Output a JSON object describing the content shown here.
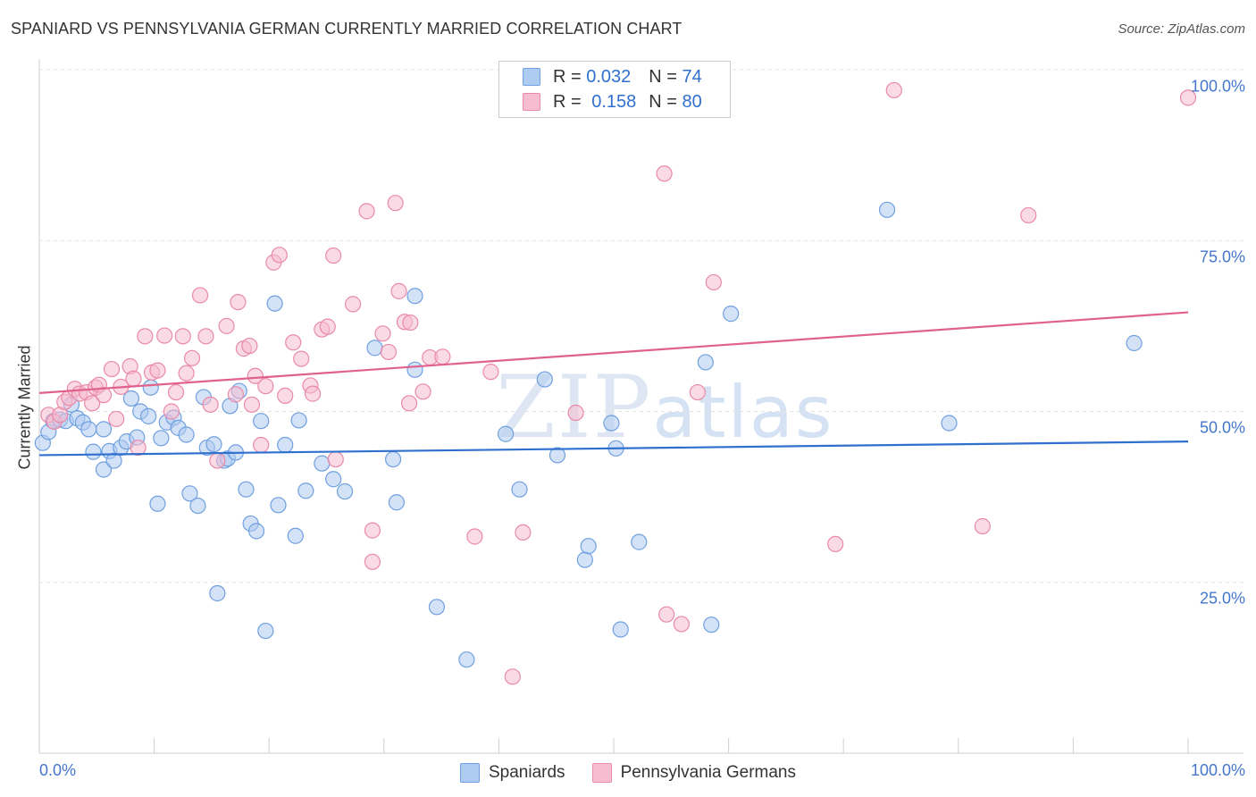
{
  "title": "SPANIARD VS PENNSYLVANIA GERMAN CURRENTLY MARRIED CORRELATION CHART",
  "source": "Source: ZipAtlas.com",
  "watermark": {
    "zip": "ZIP",
    "atlas": "atlas"
  },
  "legend": {
    "rows": [
      {
        "r_label": "R =",
        "r_value": "0.032",
        "n_label": "N =",
        "n_value": "74",
        "color": "#aecbf1"
      },
      {
        "r_label": "R =",
        "r_value": "0.158",
        "n_label": "N =",
        "n_value": "80",
        "color": "#f6bcd0"
      }
    ]
  },
  "bottom_legend": [
    {
      "label": "Spaniards",
      "color": "#aecbf1"
    },
    {
      "label": "Pennsylvania Germans",
      "color": "#f6bcd0"
    }
  ],
  "chart_data": {
    "type": "scatter",
    "title": "SPANIARD VS PENNSYLVANIA GERMAN CURRENTLY MARRIED CORRELATION CHART",
    "xlabel": "",
    "ylabel": "Currently Married",
    "xlim": [
      0,
      100
    ],
    "ylim": [
      0,
      100
    ],
    "x_tick_labels": [
      "0.0%",
      "100.0%"
    ],
    "y_ticks": [
      25,
      50,
      75,
      100
    ],
    "y_tick_labels": [
      "25.0%",
      "50.0%",
      "75.0%",
      "100.0%"
    ],
    "grid": true,
    "legend_position": "top-center",
    "series": [
      {
        "name": "Spaniards",
        "color": "#6fa0e0",
        "fill": "#aecbf1",
        "trend": {
          "x": [
            0,
            100
          ],
          "y": [
            43.6,
            45.6
          ],
          "color": "#2f6fce"
        },
        "points": [
          [
            0.3,
            45.4
          ],
          [
            0.8,
            47.0
          ],
          [
            1.2,
            48.6
          ],
          [
            1.8,
            48.8
          ],
          [
            2.3,
            48.6
          ],
          [
            2.8,
            51.0
          ],
          [
            3.3,
            49.0
          ],
          [
            3.8,
            48.4
          ],
          [
            4.3,
            47.4
          ],
          [
            4.7,
            44.1
          ],
          [
            5.6,
            47.4
          ],
          [
            5.6,
            41.5
          ],
          [
            6.1,
            44.2
          ],
          [
            6.5,
            42.8
          ],
          [
            7.1,
            44.7
          ],
          [
            7.6,
            45.6
          ],
          [
            8.0,
            51.9
          ],
          [
            8.5,
            46.2
          ],
          [
            8.8,
            50.0
          ],
          [
            9.5,
            49.3
          ],
          [
            9.7,
            53.5
          ],
          [
            10.3,
            36.5
          ],
          [
            10.6,
            46.1
          ],
          [
            11.1,
            48.4
          ],
          [
            11.7,
            49.1
          ],
          [
            12.1,
            47.6
          ],
          [
            12.8,
            46.6
          ],
          [
            13.1,
            38.0
          ],
          [
            13.8,
            36.2
          ],
          [
            14.3,
            52.1
          ],
          [
            14.6,
            44.7
          ],
          [
            15.2,
            45.2
          ],
          [
            15.5,
            23.4
          ],
          [
            16.1,
            42.8
          ],
          [
            16.4,
            43.1
          ],
          [
            16.6,
            50.8
          ],
          [
            17.1,
            44.0
          ],
          [
            17.4,
            53.0
          ],
          [
            18.0,
            38.6
          ],
          [
            18.4,
            33.6
          ],
          [
            18.9,
            32.5
          ],
          [
            19.3,
            48.6
          ],
          [
            19.7,
            17.9
          ],
          [
            20.5,
            65.8
          ],
          [
            20.8,
            36.3
          ],
          [
            21.4,
            45.1
          ],
          [
            22.3,
            31.8
          ],
          [
            22.6,
            48.7
          ],
          [
            23.2,
            38.4
          ],
          [
            24.6,
            42.4
          ],
          [
            25.6,
            40.1
          ],
          [
            26.6,
            38.3
          ],
          [
            29.2,
            59.3
          ],
          [
            30.8,
            43.0
          ],
          [
            31.1,
            36.7
          ],
          [
            32.7,
            66.9
          ],
          [
            32.7,
            56.1
          ],
          [
            34.6,
            21.4
          ],
          [
            37.2,
            13.7
          ],
          [
            40.6,
            46.7
          ],
          [
            41.8,
            38.6
          ],
          [
            44.0,
            54.7
          ],
          [
            45.1,
            43.6
          ],
          [
            47.5,
            28.3
          ],
          [
            47.8,
            30.3
          ],
          [
            49.8,
            48.3
          ],
          [
            50.2,
            44.6
          ],
          [
            50.6,
            18.1
          ],
          [
            52.2,
            30.9
          ],
          [
            58.0,
            57.2
          ],
          [
            58.5,
            18.8
          ],
          [
            60.2,
            64.3
          ],
          [
            73.8,
            79.5
          ],
          [
            79.2,
            48.3
          ],
          [
            95.3,
            60.0
          ]
        ]
      },
      {
        "name": "Pennsylvania Germans",
        "color": "#e98aa8",
        "fill": "#f6bcd0",
        "trend": {
          "x": [
            0,
            100
          ],
          "y": [
            52.7,
            64.5
          ],
          "color": "#e0628c"
        },
        "points": [
          [
            0.8,
            49.5
          ],
          [
            1.3,
            48.5
          ],
          [
            1.8,
            49.5
          ],
          [
            2.2,
            51.4
          ],
          [
            2.6,
            52.0
          ],
          [
            3.1,
            53.3
          ],
          [
            3.5,
            52.6
          ],
          [
            4.1,
            52.8
          ],
          [
            4.6,
            51.2
          ],
          [
            4.9,
            53.5
          ],
          [
            5.2,
            53.9
          ],
          [
            5.6,
            52.4
          ],
          [
            6.3,
            56.2
          ],
          [
            6.7,
            48.9
          ],
          [
            7.1,
            53.6
          ],
          [
            7.9,
            56.6
          ],
          [
            8.2,
            54.8
          ],
          [
            8.6,
            44.7
          ],
          [
            9.2,
            61.0
          ],
          [
            9.8,
            55.7
          ],
          [
            10.3,
            56.0
          ],
          [
            10.9,
            61.1
          ],
          [
            11.5,
            50.0
          ],
          [
            11.9,
            52.8
          ],
          [
            12.5,
            61.0
          ],
          [
            12.8,
            55.6
          ],
          [
            13.3,
            57.8
          ],
          [
            14.0,
            67.0
          ],
          [
            14.5,
            61.0
          ],
          [
            14.9,
            51.0
          ],
          [
            15.5,
            42.8
          ],
          [
            16.3,
            62.5
          ],
          [
            17.1,
            52.5
          ],
          [
            17.3,
            66.0
          ],
          [
            17.8,
            59.2
          ],
          [
            18.3,
            59.6
          ],
          [
            18.8,
            55.2
          ],
          [
            19.3,
            45.1
          ],
          [
            19.7,
            53.7
          ],
          [
            20.4,
            71.8
          ],
          [
            20.9,
            72.9
          ],
          [
            21.4,
            52.3
          ],
          [
            22.1,
            60.1
          ],
          [
            22.8,
            57.7
          ],
          [
            23.6,
            53.8
          ],
          [
            23.8,
            52.6
          ],
          [
            24.6,
            62.0
          ],
          [
            25.1,
            62.4
          ],
          [
            25.6,
            72.8
          ],
          [
            25.8,
            43.0
          ],
          [
            27.3,
            65.7
          ],
          [
            28.5,
            79.3
          ],
          [
            29.0,
            32.6
          ],
          [
            29.0,
            28.0
          ],
          [
            29.9,
            61.4
          ],
          [
            30.4,
            58.7
          ],
          [
            31.0,
            80.5
          ],
          [
            31.3,
            67.6
          ],
          [
            31.8,
            63.1
          ],
          [
            32.2,
            51.2
          ],
          [
            32.3,
            63.0
          ],
          [
            33.4,
            52.9
          ],
          [
            34.0,
            57.9
          ],
          [
            35.1,
            58.0
          ],
          [
            37.9,
            31.7
          ],
          [
            39.3,
            55.8
          ],
          [
            41.2,
            11.2
          ],
          [
            42.1,
            32.3
          ],
          [
            46.7,
            49.8
          ],
          [
            54.4,
            84.8
          ],
          [
            54.6,
            20.3
          ],
          [
            55.9,
            18.9
          ],
          [
            57.3,
            52.8
          ],
          [
            58.7,
            68.9
          ],
          [
            69.3,
            30.6
          ],
          [
            74.4,
            97.0
          ],
          [
            82.1,
            33.2
          ],
          [
            86.1,
            78.7
          ],
          [
            100.0,
            95.9
          ],
          [
            18.5,
            51.0
          ]
        ]
      }
    ]
  }
}
